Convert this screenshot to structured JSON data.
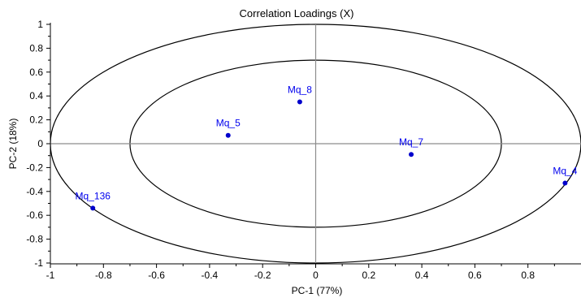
{
  "chart_data": {
    "type": "scatter",
    "title": "Correlation Loadings (X)",
    "xlabel": "PC-1 (77%)",
    "ylabel": "PC-2 (18%)",
    "xlim": [
      -1,
      1
    ],
    "ylim": [
      -1,
      1
    ],
    "xticks": [
      -1,
      -0.8,
      -0.6,
      -0.4,
      -0.2,
      0,
      0.2,
      0.4,
      0.6,
      0.8
    ],
    "xtick_labels": [
      "-1",
      "-0.8",
      "-0.6",
      "-0.4",
      "-0.2",
      "0",
      "0.2",
      "0.4",
      "0.6",
      "0.8"
    ],
    "yticks": [
      1,
      0.8,
      0.6,
      0.4,
      0.2,
      0,
      -0.2,
      -0.4,
      -0.6,
      -0.8,
      -1
    ],
    "ytick_labels": [
      "1",
      "0.8",
      "0.6",
      "0.4",
      "0.2",
      "0",
      "-0.2",
      "-0.4",
      "-0.6",
      "-0.8",
      "-1"
    ],
    "ellipse_radii": [
      1.0,
      0.7
    ],
    "grid": false,
    "points": [
      {
        "label": "Mq_8",
        "x": -0.06,
        "y": 0.35
      },
      {
        "label": "Mq_5",
        "x": -0.33,
        "y": 0.07
      },
      {
        "label": "Mq_7",
        "x": 0.36,
        "y": -0.09
      },
      {
        "label": "Mq_4",
        "x": 0.94,
        "y": -0.33
      },
      {
        "label": "Mq_136",
        "x": -0.84,
        "y": -0.54
      }
    ],
    "colors": {
      "points": "#0000cc",
      "labels": "#0000ee",
      "ellipses": "#000000",
      "zero_lines": "#8c8c8c",
      "axes": "#000000"
    }
  }
}
